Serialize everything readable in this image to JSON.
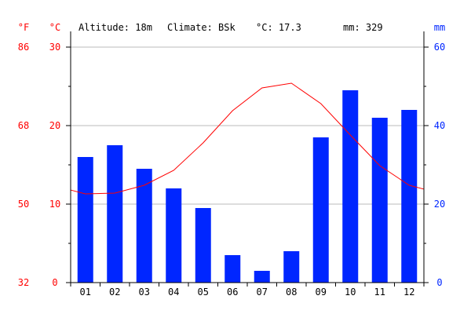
{
  "chart_data": {
    "type": "bar",
    "header": {
      "altitude": "Altitude: 18m",
      "climate": "Climate: BSk",
      "mean_temp": "°C: 17.3",
      "precip_total": "mm: 329"
    },
    "units": {
      "fahrenheit": "°F",
      "celsius": "°C",
      "millimeters": "mm"
    },
    "categories": [
      "01",
      "02",
      "03",
      "04",
      "05",
      "06",
      "07",
      "08",
      "09",
      "10",
      "11",
      "12"
    ],
    "series": [
      {
        "kind": "bar",
        "axis": "precipitation",
        "values": [
          32,
          35,
          29,
          24,
          19,
          7,
          3,
          8,
          37,
          49,
          42,
          44
        ],
        "color": "#0026ff"
      },
      {
        "kind": "line",
        "axis": "temperature",
        "values": [
          11.3,
          11.4,
          12.4,
          14.3,
          17.8,
          21.9,
          24.8,
          25.4,
          22.8,
          18.8,
          14.9,
          12.4
        ],
        "color": "#ff0000"
      }
    ],
    "temperature_axis": {
      "min": 0,
      "max": 30,
      "ticks_c": [
        0,
        10,
        20,
        30
      ],
      "ticks_f": [
        32,
        50,
        68,
        86
      ],
      "minor_ticks_c": [
        5,
        15,
        25
      ],
      "color": "#ff0000"
    },
    "precipitation_axis": {
      "min": 0,
      "max": 60,
      "ticks": [
        0,
        20,
        40,
        60
      ],
      "color": "#0026ff"
    },
    "grid": true
  }
}
